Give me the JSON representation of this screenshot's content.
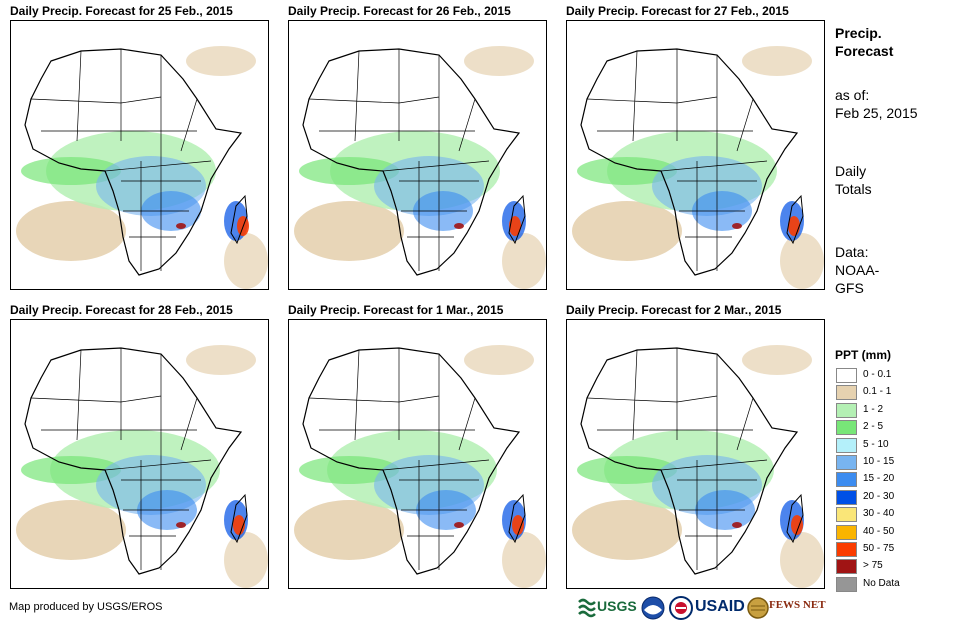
{
  "maps": [
    {
      "title": "Daily Precip. Forecast for 25 Feb., 2015"
    },
    {
      "title": "Daily Precip. Forecast for 26 Feb., 2015"
    },
    {
      "title": "Daily Precip. Forecast for 27 Feb., 2015"
    },
    {
      "title": "Daily Precip. Forecast for 28 Feb., 2015"
    },
    {
      "title": "Daily Precip. Forecast for 1 Mar., 2015"
    },
    {
      "title": "Daily Precip. Forecast for 2 Mar., 2015"
    }
  ],
  "sidebar": {
    "title_line1": "Precip.",
    "title_line2": "Forecast",
    "asof_label": "as of:",
    "asof_date": "Feb 25, 2015",
    "totals_line1": "Daily",
    "totals_line2": "Totals",
    "data_line1": "Data:",
    "data_line2": "NOAA-",
    "data_line3": "GFS"
  },
  "legend": {
    "title": "PPT (mm)",
    "items": [
      {
        "label": "0 - 0.1",
        "color": "#ffffff"
      },
      {
        "label": "0.1 - 1",
        "color": "#e6d2b0"
      },
      {
        "label": "1 - 2",
        "color": "#b4f0b4"
      },
      {
        "label": "2 - 5",
        "color": "#78e678"
      },
      {
        "label": "5 - 10",
        "color": "#b4f0fa"
      },
      {
        "label": "10 - 15",
        "color": "#78b4f0"
      },
      {
        "label": "15 - 20",
        "color": "#3c8cf0"
      },
      {
        "label": "20 - 30",
        "color": "#0050e6"
      },
      {
        "label": "30 - 40",
        "color": "#fae678"
      },
      {
        "label": "40 - 50",
        "color": "#fab400"
      },
      {
        "label": "50 - 75",
        "color": "#fa3c00"
      },
      {
        "label": "> 75",
        "color": "#a01414"
      },
      {
        "label": "No Data",
        "color": "#969696"
      }
    ]
  },
  "footer": {
    "credit": "Map produced by USGS/EROS",
    "logo_usgs": "USGS",
    "logo_usaid": "USAID",
    "logo_fewsnet": "FEWS NET"
  }
}
